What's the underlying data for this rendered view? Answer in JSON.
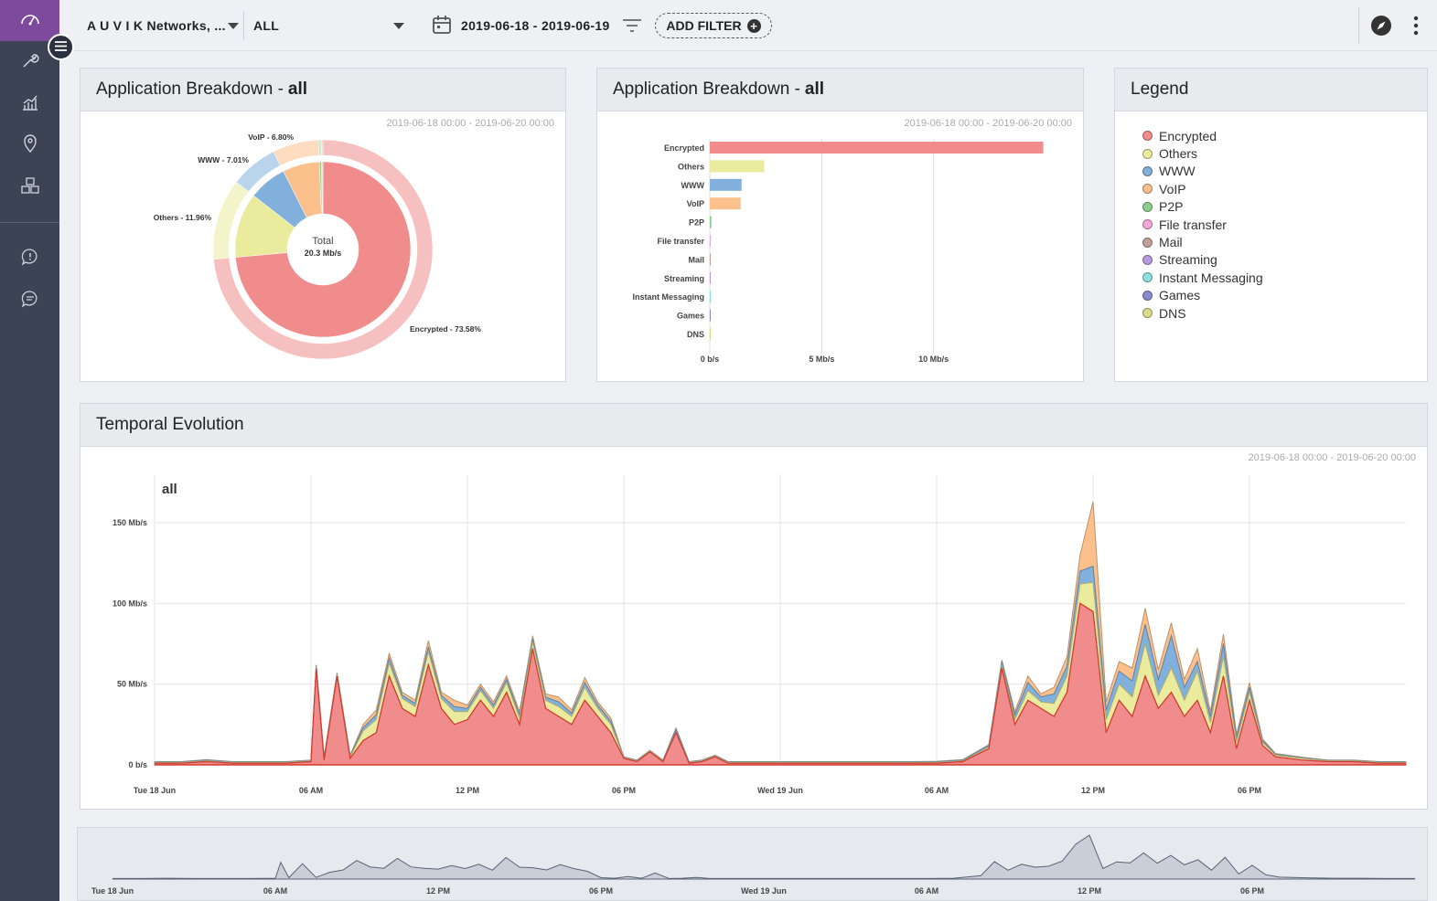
{
  "topbar": {
    "org_select": "A U V I K Networks, ...",
    "scope_select": "ALL",
    "date_range": "2019-06-18 - 2019-06-19",
    "add_filter": "ADD FILTER"
  },
  "panels": {
    "pie": {
      "title_prefix": "Application Breakdown - ",
      "title_bold": "all",
      "date_range": "2019-06-18 00:00 - 2019-06-20 00:00",
      "center_label": "Total",
      "center_value": "20.3 Mb/s"
    },
    "bar": {
      "title_prefix": "Application Breakdown - ",
      "title_bold": "all",
      "date_range": "2019-06-18 00:00 - 2019-06-20 00:00"
    },
    "legend": {
      "title": "Legend"
    },
    "temporal": {
      "title": "Temporal Evolution",
      "date_range": "2019-06-18 00:00 - 2019-06-20 00:00",
      "series_label": "all"
    }
  },
  "colors": {
    "Encrypted": "#f08c8c",
    "Others": "#eaeb9c",
    "WWW": "#82b0dc",
    "VoIP": "#fcc08c",
    "P2P": "#8ccf8c",
    "File transfer": "#f3a8d8",
    "Mail": "#c4a09a",
    "Streaming": "#b898e0",
    "Instant Messaging": "#8ee0e0",
    "Games": "#8a8ad0",
    "DNS": "#d8dc88"
  },
  "legend_items": [
    "Encrypted",
    "Others",
    "WWW",
    "VoIP",
    "P2P",
    "File transfer",
    "Mail",
    "Streaming",
    "Instant Messaging",
    "Games",
    "DNS"
  ],
  "chart_data": [
    {
      "type": "pie",
      "title": "Application Breakdown - all",
      "slices": [
        {
          "label": "Encrypted - 73.58%",
          "name": "Encrypted",
          "value": 73.58
        },
        {
          "label": "Others - 11.96%",
          "name": "Others",
          "value": 11.96
        },
        {
          "label": "WWW - 7.01%",
          "name": "WWW",
          "value": 7.01
        },
        {
          "label": "VoIP - 6.80%",
          "name": "VoIP",
          "value": 6.8
        },
        {
          "label": "",
          "name": "P2P",
          "value": 0.35
        },
        {
          "label": "",
          "name": "File transfer",
          "value": 0.15
        },
        {
          "label": "",
          "name": "Mail",
          "value": 0.15
        }
      ]
    },
    {
      "type": "bar",
      "title": "Application Breakdown - all",
      "orientation": "horizontal",
      "unit": "Mb/s",
      "categories": [
        "Encrypted",
        "Others",
        "WWW",
        "VoIP",
        "P2P",
        "File transfer",
        "Mail",
        "Streaming",
        "Instant Messaging",
        "Games",
        "DNS"
      ],
      "values": [
        14.9,
        2.43,
        1.42,
        1.38,
        0.07,
        0.03,
        0.03,
        0.02,
        0.01,
        0.005,
        0.005
      ],
      "xlim": [
        0,
        15
      ],
      "xticks": [
        {
          "v": 0,
          "label": "0 b/s"
        },
        {
          "v": 5,
          "label": "5 Mb/s"
        },
        {
          "v": 10,
          "label": "10 Mb/s"
        }
      ]
    },
    {
      "type": "area",
      "title": "all",
      "stacked": true,
      "unit": "Mb/s",
      "ylim": [
        0,
        180
      ],
      "yticks": [
        {
          "v": 0,
          "label": "0 b/s"
        },
        {
          "v": 50,
          "label": "50 Mb/s"
        },
        {
          "v": 100,
          "label": "100 Mb/s"
        },
        {
          "v": 150,
          "label": "150 Mb/s"
        }
      ],
      "xrange_hours": [
        0,
        48
      ],
      "xticks": [
        {
          "h": 0,
          "label": "Tue 18 Jun"
        },
        {
          "h": 6,
          "label": "06 AM"
        },
        {
          "h": 12,
          "label": "12 PM"
        },
        {
          "h": 18,
          "label": "06 PM"
        },
        {
          "h": 24,
          "label": "Wed 19 Jun"
        },
        {
          "h": 30,
          "label": "06 AM"
        },
        {
          "h": 36,
          "label": "12 PM"
        },
        {
          "h": 42,
          "label": "06 PM"
        }
      ],
      "hours": [
        0,
        1,
        2,
        3,
        4,
        5,
        6,
        6.2,
        6.5,
        7,
        7.5,
        8,
        8.5,
        9,
        9.5,
        10,
        10.5,
        11,
        11.5,
        12,
        12.5,
        13,
        13.5,
        14,
        14.5,
        15,
        15.5,
        16,
        16.5,
        17,
        17.5,
        18,
        18.5,
        19,
        19.5,
        20,
        20.5,
        21,
        21.5,
        22,
        23,
        24,
        25,
        26,
        27,
        28,
        29,
        30,
        31,
        32,
        32.5,
        33,
        33.5,
        34,
        34.5,
        35,
        35.5,
        36,
        36.5,
        37,
        37.5,
        38,
        38.5,
        39,
        39.5,
        40,
        40.5,
        41,
        41.5,
        42,
        42.5,
        43,
        44,
        45,
        46,
        47,
        48
      ],
      "series": [
        {
          "name": "Encrypted",
          "values": [
            1,
            1,
            2,
            1,
            1,
            1,
            2,
            60,
            3,
            55,
            4,
            15,
            20,
            55,
            35,
            30,
            62,
            35,
            25,
            28,
            40,
            30,
            45,
            25,
            72,
            35,
            30,
            25,
            40,
            30,
            20,
            4,
            2,
            8,
            2,
            20,
            1,
            2,
            5,
            1,
            1,
            1,
            1,
            1,
            1,
            1,
            1,
            1,
            2,
            10,
            60,
            25,
            40,
            35,
            30,
            45,
            100,
            95,
            20,
            40,
            30,
            55,
            35,
            45,
            30,
            40,
            20,
            55,
            10,
            40,
            12,
            5,
            3,
            2,
            2,
            1,
            1
          ]
        },
        {
          "name": "Others",
          "values": [
            0.5,
            0.5,
            0.5,
            0.5,
            0.5,
            0.5,
            0.5,
            1,
            1,
            1,
            1,
            6,
            8,
            8,
            6,
            6,
            8,
            6,
            8,
            5,
            6,
            5,
            6,
            4,
            4,
            5,
            6,
            5,
            8,
            5,
            5,
            0.5,
            0.5,
            0.5,
            0.5,
            0.5,
            0.5,
            0.5,
            0.5,
            0.5,
            0.5,
            0.5,
            0.5,
            0.5,
            0.5,
            0.5,
            0.5,
            0.5,
            0.5,
            1,
            2,
            3,
            6,
            4,
            8,
            10,
            12,
            18,
            8,
            10,
            12,
            20,
            8,
            15,
            10,
            18,
            6,
            12,
            4,
            5,
            2,
            1,
            1,
            0.5,
            0.5,
            0.5,
            0.5
          ]
        },
        {
          "name": "WWW",
          "values": [
            0.3,
            0.3,
            0.5,
            0.3,
            0.3,
            0.3,
            0.3,
            0.5,
            0.5,
            0.5,
            0.5,
            2,
            3,
            3,
            2,
            2,
            3,
            2,
            3,
            2,
            2,
            2,
            2,
            2,
            2,
            2,
            3,
            2,
            3,
            2,
            2,
            0.3,
            0.3,
            0.3,
            0.3,
            2,
            0.3,
            0.3,
            0.3,
            0.3,
            0.3,
            0.3,
            0.3,
            0.3,
            0.3,
            0.3,
            0.3,
            0.5,
            0.5,
            1,
            2,
            3,
            5,
            3,
            6,
            6,
            8,
            10,
            6,
            8,
            10,
            12,
            10,
            20,
            8,
            6,
            4,
            8,
            3,
            3,
            1,
            0.5,
            0.5,
            0.3,
            0.3,
            0.3,
            0.3
          ]
        },
        {
          "name": "VoIP",
          "values": [
            0.2,
            0.2,
            0.2,
            0.2,
            0.2,
            0.2,
            0.2,
            0.5,
            0.5,
            0.5,
            0.5,
            2,
            3,
            3,
            2,
            2,
            4,
            2,
            4,
            2,
            2,
            2,
            2,
            2,
            2,
            2,
            3,
            2,
            3,
            2,
            2,
            0.2,
            0.2,
            0.2,
            0.2,
            0.2,
            0.2,
            0.2,
            0.2,
            0.2,
            0.2,
            0.2,
            0.2,
            0.2,
            0.2,
            0.2,
            0.2,
            0.2,
            0.2,
            0.5,
            1,
            2,
            4,
            2,
            4,
            6,
            10,
            40,
            5,
            6,
            8,
            10,
            6,
            8,
            5,
            8,
            3,
            6,
            2,
            3,
            1,
            0.5,
            0.3,
            0.2,
            0.2,
            0.2,
            0.2
          ]
        }
      ]
    }
  ],
  "overview": {
    "xticks": [
      {
        "h": 0,
        "label": "Tue 18 Jun"
      },
      {
        "h": 6,
        "label": "06 AM"
      },
      {
        "h": 12,
        "label": "12 PM"
      },
      {
        "h": 18,
        "label": "06 PM"
      },
      {
        "h": 24,
        "label": "Wed 19 Jun"
      },
      {
        "h": 30,
        "label": "06 AM"
      },
      {
        "h": 36,
        "label": "12 PM"
      },
      {
        "h": 42,
        "label": "06 PM"
      }
    ]
  }
}
